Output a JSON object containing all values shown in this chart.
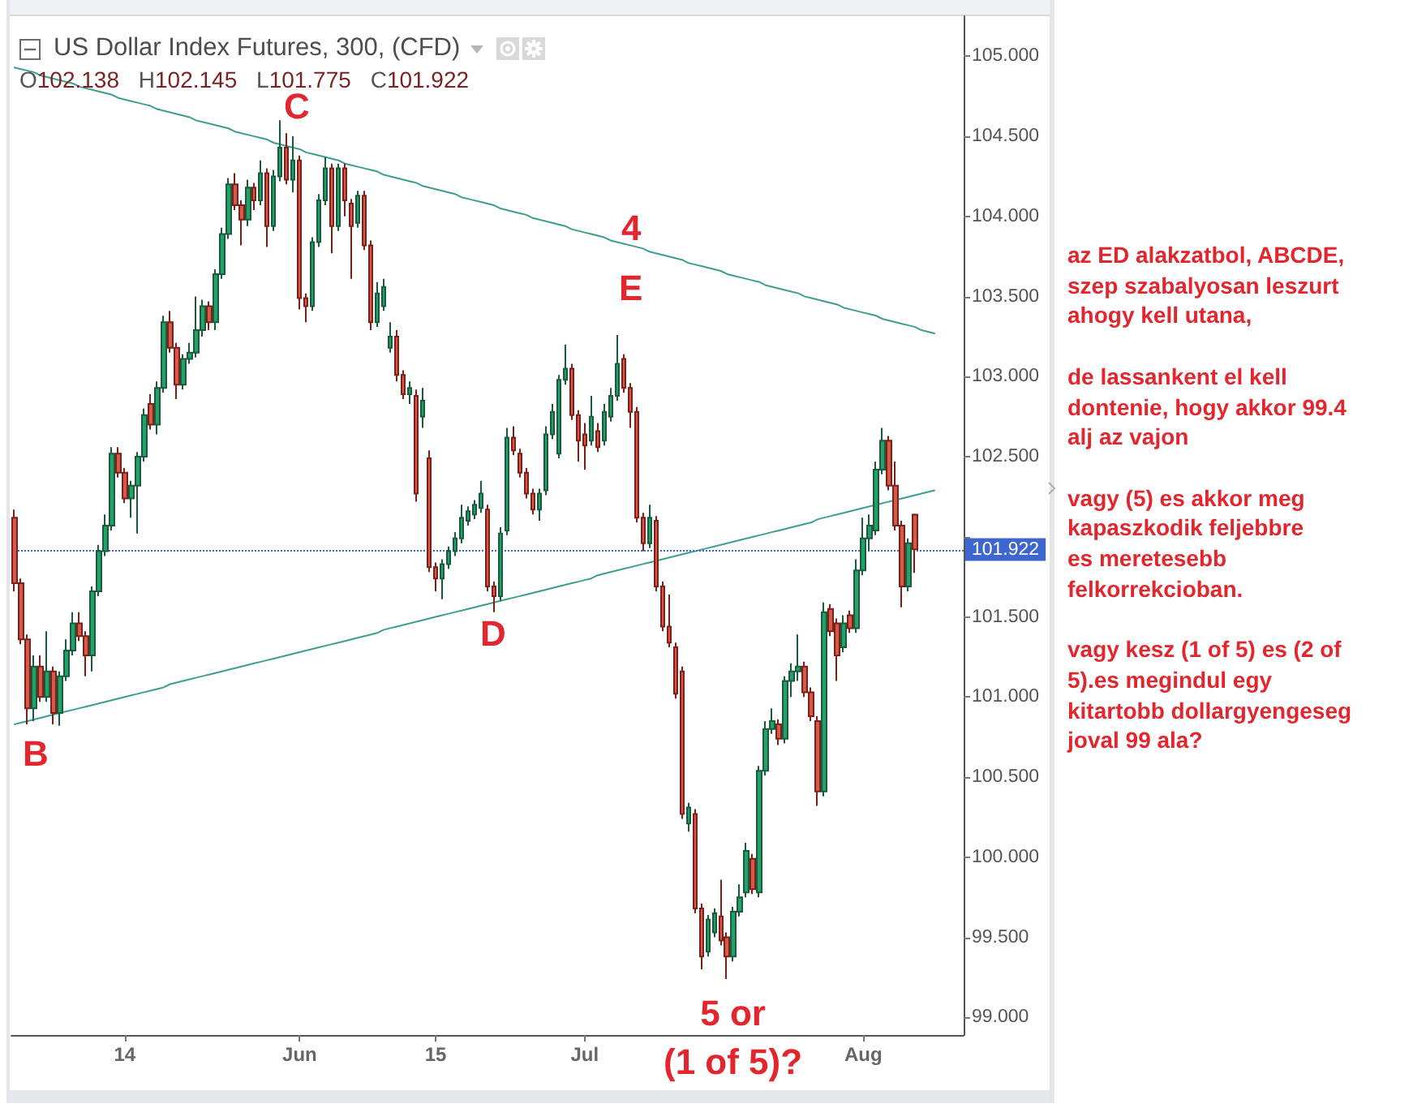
{
  "chart_data": {
    "type": "candlestick",
    "title": "US Dollar Index Futures, 300, (CFD)",
    "subtitle": "O102.138 H102.145 L101.775 C101.922",
    "categories": [
      null,
      null,
      null,
      null,
      null,
      null,
      null,
      null,
      null,
      null,
      null,
      null,
      null,
      null,
      null,
      null,
      null,
      "14",
      null,
      null,
      null,
      null,
      null,
      null,
      null,
      null,
      null,
      null,
      null,
      null,
      null,
      null,
      null,
      null,
      null,
      null,
      null,
      null,
      null,
      null,
      null,
      null,
      null,
      null,
      "Jun",
      null,
      null,
      null,
      null,
      null,
      null,
      null,
      null,
      null,
      null,
      null,
      null,
      null,
      null,
      null,
      null,
      null,
      null,
      null,
      null,
      "15",
      null,
      null,
      null,
      null,
      null,
      null,
      null,
      null,
      null,
      null,
      null,
      null,
      null,
      null,
      null,
      null,
      null,
      null,
      null,
      null,
      null,
      null,
      "Jul",
      null,
      null,
      null,
      null,
      null,
      null,
      null,
      null,
      null,
      null,
      null,
      null,
      null,
      null,
      null,
      null,
      null,
      null,
      null,
      null,
      null,
      null,
      null,
      null,
      null,
      null,
      null,
      null,
      null,
      null,
      null,
      null,
      null,
      null,
      null,
      null,
      null,
      null,
      null,
      null,
      null,
      null,
      "Aug",
      null,
      null,
      null,
      null,
      null,
      null,
      null,
      null,
      null,
      null,
      null,
      null,
      null,
      null,
      null
    ],
    "ohlc": [
      [
        102.12,
        102.17,
        101.66,
        101.71
      ],
      [
        101.71,
        101.74,
        101.33,
        101.36
      ],
      [
        101.36,
        101.39,
        100.83,
        100.93
      ],
      [
        100.93,
        101.26,
        100.85,
        101.19
      ],
      [
        101.19,
        101.26,
        100.97,
        101.0
      ],
      [
        101.0,
        101.41,
        100.97,
        101.16
      ],
      [
        101.16,
        101.19,
        100.83,
        100.9
      ],
      [
        100.9,
        101.16,
        100.82,
        101.13
      ],
      [
        101.13,
        101.36,
        101.1,
        101.29
      ],
      [
        101.29,
        101.53,
        101.26,
        101.46
      ],
      [
        101.46,
        101.53,
        101.35,
        101.38
      ],
      [
        101.38,
        101.41,
        101.13,
        101.26
      ],
      [
        101.26,
        101.69,
        101.16,
        101.66
      ],
      [
        101.66,
        101.95,
        101.63,
        101.91
      ],
      [
        101.91,
        102.14,
        101.88,
        102.07
      ],
      [
        102.07,
        102.56,
        102.04,
        102.52
      ],
      [
        102.52,
        102.56,
        102.37,
        102.4
      ],
      [
        102.4,
        102.43,
        102.21,
        102.24
      ],
      [
        102.24,
        102.35,
        102.12,
        102.32
      ],
      [
        102.32,
        102.53,
        102.02,
        102.5
      ],
      [
        102.5,
        102.8,
        102.47,
        102.76
      ],
      [
        102.83,
        102.89,
        102.67,
        102.7
      ],
      [
        102.7,
        102.97,
        102.64,
        102.93
      ],
      [
        102.93,
        103.38,
        102.9,
        103.34
      ],
      [
        103.34,
        103.41,
        103.15,
        103.18
      ],
      [
        103.18,
        103.21,
        102.86,
        102.95
      ],
      [
        102.95,
        103.14,
        102.92,
        103.11
      ],
      [
        103.11,
        103.21,
        103.08,
        103.15
      ],
      [
        103.15,
        103.5,
        103.12,
        103.29
      ],
      [
        103.29,
        103.48,
        103.25,
        103.44
      ],
      [
        103.44,
        103.47,
        103.29,
        103.34
      ],
      [
        103.34,
        103.67,
        103.29,
        103.64
      ],
      [
        103.64,
        103.93,
        103.61,
        103.89
      ],
      [
        103.89,
        104.24,
        103.86,
        104.2
      ],
      [
        104.2,
        104.27,
        104.04,
        104.07
      ],
      [
        104.07,
        104.1,
        103.82,
        103.98
      ],
      [
        103.98,
        104.23,
        103.94,
        104.18
      ],
      [
        104.18,
        104.21,
        104.04,
        104.1
      ],
      [
        104.1,
        104.35,
        104.07,
        104.27
      ],
      [
        104.27,
        104.3,
        103.81,
        103.94
      ],
      [
        103.94,
        104.29,
        103.91,
        104.25
      ],
      [
        104.25,
        104.6,
        104.22,
        104.43
      ],
      [
        104.43,
        104.52,
        104.2,
        104.23
      ],
      [
        104.23,
        104.5,
        104.15,
        104.35
      ],
      [
        104.35,
        104.38,
        103.42,
        103.49
      ],
      [
        103.49,
        103.52,
        103.34,
        103.44
      ],
      [
        103.44,
        103.87,
        103.41,
        103.84
      ],
      [
        103.84,
        104.14,
        103.81,
        104.1
      ],
      [
        104.1,
        104.37,
        104.07,
        104.3
      ],
      [
        104.3,
        104.33,
        103.77,
        103.94
      ],
      [
        103.94,
        104.33,
        103.91,
        104.3
      ],
      [
        104.3,
        104.33,
        104.0,
        104.1
      ],
      [
        104.08,
        104.11,
        103.61,
        103.94
      ],
      [
        103.96,
        104.16,
        103.93,
        104.13
      ],
      [
        104.13,
        104.16,
        103.79,
        103.82
      ],
      [
        103.82,
        103.85,
        103.29,
        103.34
      ],
      [
        103.34,
        103.59,
        103.31,
        103.52
      ],
      [
        103.44,
        103.61,
        103.41,
        103.56
      ],
      [
        103.18,
        103.34,
        103.15,
        103.25
      ],
      [
        103.25,
        103.29,
        102.97,
        103.01
      ],
      [
        103.01,
        103.04,
        102.86,
        102.89
      ],
      [
        102.89,
        102.97,
        102.83,
        102.93
      ],
      [
        102.88,
        102.92,
        102.22,
        102.27
      ],
      [
        102.75,
        102.93,
        102.68,
        102.85
      ],
      [
        102.49,
        102.54,
        101.78,
        101.81
      ],
      [
        101.81,
        101.84,
        101.66,
        101.74
      ],
      [
        101.74,
        101.86,
        101.61,
        101.83
      ],
      [
        101.83,
        101.94,
        101.8,
        101.91
      ],
      [
        101.91,
        102.03,
        101.88,
        101.99
      ],
      [
        101.99,
        102.2,
        101.96,
        102.12
      ],
      [
        102.1,
        102.19,
        102.07,
        102.16
      ],
      [
        102.14,
        102.23,
        102.11,
        102.2
      ],
      [
        102.18,
        102.35,
        102.15,
        102.27
      ],
      [
        102.17,
        102.2,
        101.66,
        101.69
      ],
      [
        101.69,
        101.72,
        101.53,
        101.63
      ],
      [
        101.63,
        102.06,
        101.6,
        102.02
      ],
      [
        102.04,
        102.68,
        102.01,
        102.62
      ],
      [
        102.62,
        102.69,
        102.51,
        102.54
      ],
      [
        102.52,
        102.55,
        102.37,
        102.4
      ],
      [
        102.4,
        102.43,
        102.24,
        102.27
      ],
      [
        102.27,
        102.3,
        102.14,
        102.17
      ],
      [
        102.17,
        102.3,
        102.1,
        102.27
      ],
      [
        102.29,
        102.69,
        102.26,
        102.64
      ],
      [
        102.64,
        102.83,
        102.61,
        102.78
      ],
      [
        102.52,
        103.01,
        102.49,
        102.98
      ],
      [
        102.98,
        103.2,
        102.95,
        103.05
      ],
      [
        103.05,
        103.08,
        102.73,
        102.76
      ],
      [
        102.76,
        102.79,
        102.47,
        102.6
      ],
      [
        102.64,
        102.71,
        102.42,
        102.57
      ],
      [
        102.6,
        102.88,
        102.57,
        102.75
      ],
      [
        102.66,
        102.71,
        102.53,
        102.56
      ],
      [
        102.6,
        102.83,
        102.57,
        102.78
      ],
      [
        102.75,
        102.93,
        102.72,
        102.88
      ],
      [
        102.88,
        103.26,
        102.85,
        103.08
      ],
      [
        103.11,
        103.14,
        102.9,
        102.93
      ],
      [
        102.93,
        102.96,
        102.68,
        102.78
      ],
      [
        102.78,
        102.81,
        102.09,
        102.12
      ],
      [
        102.12,
        102.15,
        101.91,
        101.96
      ],
      [
        101.96,
        102.2,
        101.93,
        102.12
      ],
      [
        102.1,
        102.13,
        101.66,
        101.69
      ],
      [
        101.69,
        101.72,
        101.41,
        101.44
      ],
      [
        101.44,
        101.64,
        101.31,
        101.34
      ],
      [
        101.31,
        101.34,
        100.99,
        101.02
      ],
      [
        101.16,
        101.19,
        100.24,
        100.27
      ],
      [
        100.21,
        100.34,
        100.16,
        100.31
      ],
      [
        100.27,
        100.3,
        99.65,
        99.68
      ],
      [
        99.68,
        99.71,
        99.3,
        99.38
      ],
      [
        99.41,
        99.64,
        99.38,
        99.61
      ],
      [
        99.53,
        99.68,
        99.5,
        99.65
      ],
      [
        99.63,
        99.86,
        99.45,
        99.48
      ],
      [
        99.5,
        99.53,
        99.24,
        99.38
      ],
      [
        99.38,
        99.69,
        99.35,
        99.66
      ],
      [
        99.66,
        99.83,
        99.63,
        99.75
      ],
      [
        99.78,
        100.09,
        99.75,
        100.04
      ],
      [
        99.99,
        100.02,
        99.77,
        99.8
      ],
      [
        99.78,
        100.57,
        99.75,
        100.54
      ],
      [
        100.54,
        100.85,
        100.51,
        100.8
      ],
      [
        100.8,
        100.93,
        100.77,
        100.85
      ],
      [
        100.83,
        100.86,
        100.7,
        100.74
      ],
      [
        100.74,
        101.13,
        100.71,
        101.1
      ],
      [
        101.1,
        101.21,
        101.0,
        101.16
      ],
      [
        101.16,
        101.39,
        101.1,
        101.19
      ],
      [
        101.19,
        101.22,
        101.0,
        101.03
      ],
      [
        101.03,
        101.06,
        100.85,
        100.88
      ],
      [
        100.85,
        100.88,
        100.32,
        100.41
      ],
      [
        100.41,
        101.59,
        100.38,
        101.53
      ],
      [
        101.55,
        101.58,
        101.38,
        101.41
      ],
      [
        101.46,
        101.49,
        101.1,
        101.26
      ],
      [
        101.31,
        101.51,
        101.28,
        101.46
      ],
      [
        101.51,
        101.54,
        101.4,
        101.43
      ],
      [
        101.43,
        101.86,
        101.4,
        101.79
      ],
      [
        101.79,
        102.12,
        101.76,
        101.99
      ],
      [
        101.99,
        102.14,
        101.91,
        102.07
      ],
      [
        102.04,
        102.47,
        102.01,
        102.42
      ],
      [
        102.42,
        102.68,
        102.39,
        102.6
      ],
      [
        102.6,
        102.63,
        102.29,
        102.32
      ],
      [
        102.32,
        102.47,
        102.04,
        102.07
      ],
      [
        102.07,
        102.1,
        101.56,
        101.69
      ],
      [
        101.69,
        101.99,
        101.66,
        101.96
      ],
      [
        102.138,
        102.145,
        101.775,
        101.922
      ],
      null,
      null,
      null,
      null,
      null,
      null,
      null
    ],
    "series": [
      {
        "type": "line",
        "color": "#3c9e8e",
        "values": [
          104.93,
          104.92,
          104.91,
          104.9,
          104.88,
          104.87,
          104.86,
          104.85,
          104.84,
          104.83,
          104.81,
          104.8,
          104.79,
          104.78,
          104.77,
          104.76,
          104.74,
          104.73,
          104.72,
          104.71,
          104.7,
          104.69,
          104.67,
          104.66,
          104.65,
          104.64,
          104.63,
          104.62,
          104.6,
          104.59,
          104.58,
          104.57,
          104.56,
          104.55,
          104.53,
          104.52,
          104.51,
          104.5,
          104.49,
          104.48,
          104.46,
          104.45,
          104.44,
          104.43,
          104.42,
          104.4,
          104.39,
          104.38,
          104.37,
          104.36,
          104.35,
          104.33,
          104.32,
          104.31,
          104.3,
          104.29,
          104.28,
          104.26,
          104.25,
          104.24,
          104.23,
          104.22,
          104.21,
          104.19,
          104.18,
          104.17,
          104.16,
          104.15,
          104.14,
          104.12,
          104.11,
          104.1,
          104.09,
          104.08,
          104.07,
          104.05,
          104.04,
          104.03,
          104.02,
          104.01,
          103.99,
          103.98,
          103.97,
          103.96,
          103.95,
          103.94,
          103.92,
          103.91,
          103.9,
          103.89,
          103.88,
          103.87,
          103.85,
          103.84,
          103.83,
          103.82,
          103.81,
          103.8,
          103.78,
          103.77,
          103.76,
          103.75,
          103.74,
          103.73,
          103.71,
          103.7,
          103.69,
          103.68,
          103.67,
          103.66,
          103.64,
          103.63,
          103.62,
          103.61,
          103.6,
          103.59,
          103.57,
          103.56,
          103.55,
          103.54,
          103.53,
          103.52,
          103.5,
          103.49,
          103.48,
          103.47,
          103.46,
          103.45,
          103.43,
          103.42,
          103.41,
          103.4,
          103.39,
          103.38,
          103.36,
          103.35,
          103.34,
          103.33,
          103.32,
          103.31,
          103.29,
          103.28,
          103.27,
          null,
          null,
          null,
          null
        ]
      },
      {
        "type": "line",
        "color": "#3c9e8e",
        "values": [
          100.83,
          100.84,
          100.85,
          100.86,
          100.87,
          100.88,
          100.89,
          100.9,
          100.91,
          100.92,
          100.93,
          100.94,
          100.95,
          100.96,
          100.97,
          100.98,
          100.99,
          101.0,
          101.01,
          101.02,
          101.03,
          101.04,
          101.05,
          101.06,
          101.08,
          101.09,
          101.1,
          101.11,
          101.12,
          101.13,
          101.14,
          101.15,
          101.16,
          101.17,
          101.18,
          101.19,
          101.2,
          101.21,
          101.22,
          101.23,
          101.24,
          101.25,
          101.26,
          101.27,
          101.28,
          101.29,
          101.3,
          101.31,
          101.32,
          101.33,
          101.34,
          101.35,
          101.36,
          101.37,
          101.38,
          101.39,
          101.4,
          101.42,
          101.43,
          101.44,
          101.45,
          101.46,
          101.47,
          101.48,
          101.49,
          101.5,
          101.51,
          101.52,
          101.53,
          101.54,
          101.55,
          101.56,
          101.57,
          101.58,
          101.59,
          101.6,
          101.61,
          101.62,
          101.63,
          101.64,
          101.65,
          101.66,
          101.67,
          101.68,
          101.69,
          101.7,
          101.71,
          101.72,
          101.73,
          101.74,
          101.76,
          101.77,
          101.78,
          101.79,
          101.8,
          101.81,
          101.82,
          101.83,
          101.84,
          101.85,
          101.86,
          101.87,
          101.88,
          101.89,
          101.9,
          101.91,
          101.92,
          101.93,
          101.94,
          101.95,
          101.96,
          101.97,
          101.98,
          101.99,
          102.0,
          102.01,
          102.02,
          102.03,
          102.04,
          102.05,
          102.06,
          102.07,
          102.08,
          102.09,
          102.11,
          102.12,
          102.13,
          102.14,
          102.15,
          102.16,
          102.17,
          102.18,
          102.19,
          102.2,
          102.21,
          102.22,
          102.23,
          102.24,
          102.25,
          102.26,
          102.27,
          102.28,
          102.29,
          null,
          null,
          null,
          null
        ]
      }
    ],
    "ylim": [
      98.89,
      105.25
    ],
    "yticks": [
      {
        "value": 99,
        "label": "99.000"
      },
      {
        "value": 99.5,
        "label": "99.500"
      },
      {
        "value": 100,
        "label": "100.000"
      },
      {
        "value": 100.5,
        "label": "100.500"
      },
      {
        "value": 101,
        "label": "101.000"
      },
      {
        "value": 101.5,
        "label": "101.500"
      },
      {
        "value": 102,
        "label": null
      },
      {
        "value": 102.5,
        "label": "102.500"
      },
      {
        "value": 103,
        "label": "103.000"
      },
      {
        "value": 103.5,
        "label": "103.500"
      },
      {
        "value": 104,
        "label": "104.000"
      },
      {
        "value": 104.5,
        "label": "104.500"
      },
      {
        "value": 105,
        "label": "105.000"
      }
    ],
    "ref_lines": [
      {
        "axis": "y",
        "value": 101.922,
        "label": "101.922",
        "color": "#3d66cf",
        "line_style": "dotted"
      }
    ],
    "annotations": [
      "C",
      "4",
      "E",
      "D",
      "B",
      "5 or\n(1 of 5)?",
      "az ED alakzatbol, ABCDE,\nszep szabalyosan leszurt\nahogy kell utana,",
      "de lassankent el kell\ndontenie, hogy akkor 99.4\nalj az vajon",
      "vagy (5) es akkor meg\nkapaszkodik feljebbre\nes meretesebb\nfelkorrekcioban.",
      "vagy kesz (1 of 5) es (2 of\n5).es megindul egy\nkitartobb dollargyengeseg\njoval 99 ala?"
    ]
  }
}
